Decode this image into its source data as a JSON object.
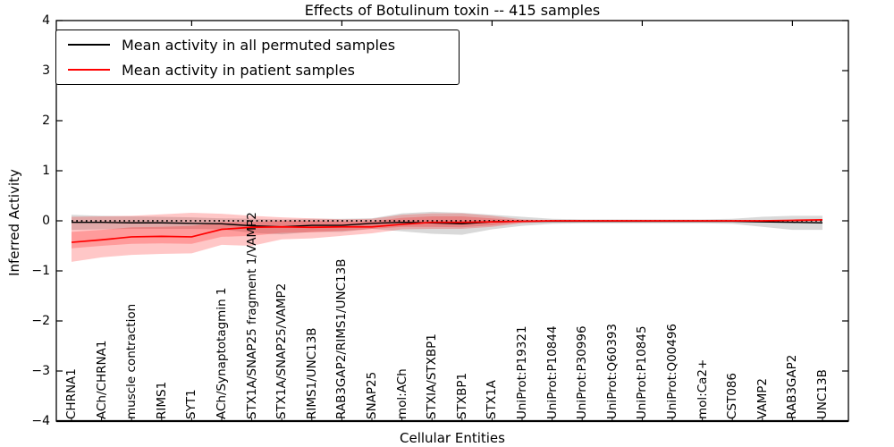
{
  "figure": {
    "title": "Effects of Botulinum toxin -- 415 samples",
    "xlabel": "Cellular Entities",
    "ylabel": "Inferred Activity"
  },
  "legend": {
    "entries": [
      {
        "label": "Mean activity in all permuted samples",
        "color": "#000000"
      },
      {
        "label": "Mean activity in patient samples",
        "color": "#ff0000"
      }
    ],
    "position": "upper left"
  },
  "axes": {
    "ylim": [
      -4,
      4
    ],
    "y_tick_values": [
      4,
      3,
      2,
      1,
      0,
      -1,
      -2,
      -3,
      -4
    ],
    "y_tick_labels": [
      "4",
      "3",
      "2",
      "1",
      "0",
      "−1",
      "−2",
      "−3",
      "−4"
    ],
    "grid": false
  },
  "chart_data": {
    "type": "line",
    "title": "Effects of Botulinum toxin -- 415 samples",
    "xlabel": "Cellular Entities",
    "ylabel": "Inferred Activity",
    "ylim": [
      -4,
      4
    ],
    "legend_position": "upper left",
    "grid": false,
    "zero_line": {
      "y": 0,
      "style": "dotted",
      "color": "#000000"
    },
    "top_tick_indices": [
      4,
      9,
      14,
      19,
      24
    ],
    "categories": [
      "CHRNA1",
      "ACh/CHRNA1",
      "muscle contraction",
      "RIMS1",
      "SYT1",
      "ACh/Synaptotagmin 1",
      "STX1A/SNAP25 fragment 1/VAMP2",
      "STX1A/SNAP25/VAMP2",
      "RIMS1/UNC13B",
      "RAB3GAP2/RIMS1/UNC13B",
      "SNAP25",
      "mol:ACh",
      "STXIA/STXBP1",
      "STXBP1",
      "STX1A",
      "UniProt:P19321",
      "UniProt:P10844",
      "UniProt:P30996",
      "UniProt:Q60393",
      "UniProt:P10845",
      "UniProt:Q00496",
      "mol:Ca2+",
      "CST086",
      "VAMP2",
      "RAB3GAP2",
      "UNC13B"
    ],
    "series": [
      {
        "name": "Mean activity in all permuted samples",
        "color": "#000000",
        "band_color": "rgba(120,120,120,0.28)",
        "values": [
          -0.03,
          -0.03,
          -0.04,
          -0.04,
          -0.05,
          -0.06,
          -0.1,
          -0.12,
          -0.09,
          -0.09,
          -0.05,
          -0.03,
          -0.04,
          -0.06,
          -0.02,
          -0.01,
          -0.01,
          -0.01,
          -0.01,
          -0.01,
          -0.01,
          -0.01,
          -0.01,
          -0.02,
          -0.03,
          -0.04
        ],
        "band_upper": [
          0.12,
          0.1,
          0.09,
          0.08,
          0.07,
          0.05,
          0.04,
          0.03,
          0.04,
          0.04,
          0.05,
          0.15,
          0.18,
          0.16,
          0.12,
          0.08,
          0.04,
          0.03,
          0.03,
          0.03,
          0.03,
          0.03,
          0.04,
          0.08,
          0.1,
          0.1
        ],
        "band_lower": [
          -0.18,
          -0.17,
          -0.16,
          -0.16,
          -0.16,
          -0.17,
          -0.24,
          -0.27,
          -0.22,
          -0.22,
          -0.16,
          -0.21,
          -0.26,
          -0.28,
          -0.17,
          -0.1,
          -0.06,
          -0.05,
          -0.05,
          -0.05,
          -0.05,
          -0.05,
          -0.06,
          -0.12,
          -0.18,
          -0.18
        ]
      },
      {
        "name": "Mean activity in patient samples",
        "color": "#ff0000",
        "band_color": "rgba(255,0,0,0.22)",
        "values": [
          -0.43,
          -0.38,
          -0.32,
          -0.31,
          -0.32,
          -0.17,
          -0.13,
          -0.12,
          -0.13,
          -0.12,
          -0.12,
          -0.07,
          -0.03,
          -0.03,
          -0.02,
          -0.01,
          0,
          0,
          0,
          0,
          0,
          0,
          0,
          0,
          0.01,
          0.02
        ],
        "band_upper": [
          0.08,
          0.09,
          0.1,
          0.13,
          0.16,
          0.14,
          0.1,
          0.07,
          0.05,
          0.03,
          0.04,
          0.12,
          0.15,
          0.15,
          0.1,
          0.03,
          0.01,
          0.01,
          0.01,
          0.01,
          0.01,
          0.01,
          0.01,
          0.01,
          0.02,
          0.03
        ],
        "band_lower": [
          -0.82,
          -0.73,
          -0.68,
          -0.66,
          -0.65,
          -0.48,
          -0.5,
          -0.37,
          -0.35,
          -0.3,
          -0.25,
          -0.17,
          -0.16,
          -0.16,
          -0.12,
          -0.05,
          -0.02,
          -0.02,
          -0.02,
          -0.02,
          -0.02,
          -0.02,
          -0.02,
          -0.02,
          -0.02,
          -0.01
        ],
        "band_inner_upper": [
          -0.22,
          -0.18,
          -0.13,
          -0.12,
          -0.1,
          -0.03,
          -0.02,
          0.0,
          0.0,
          -0.01,
          -0.01,
          0.06,
          0.09,
          0.09,
          0.05,
          0.01,
          0.0,
          0.0,
          0.0,
          0.0,
          0.0,
          0.0,
          0.0,
          0.0,
          0.01,
          0.02
        ],
        "band_inner_lower": [
          -0.55,
          -0.5,
          -0.46,
          -0.45,
          -0.46,
          -0.32,
          -0.3,
          -0.24,
          -0.23,
          -0.2,
          -0.16,
          -0.12,
          -0.12,
          -0.13,
          -0.09,
          -0.03,
          -0.01,
          -0.01,
          -0.01,
          -0.01,
          -0.01,
          -0.01,
          -0.01,
          -0.01,
          -0.01,
          0.0
        ]
      }
    ]
  }
}
